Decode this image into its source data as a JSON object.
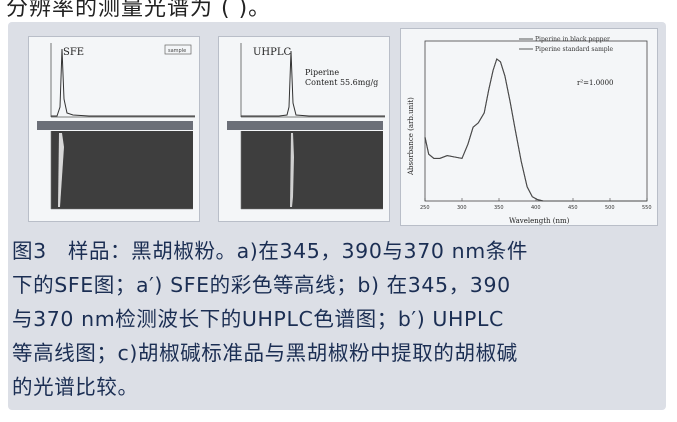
{
  "top_text": "分辨率的测量光谱为          (  )。",
  "figure": {
    "sfe": {
      "label": "SFE",
      "inset_label": "sample",
      "colors": {
        "plot_bg": "#f4f6f8",
        "contour_bg": "#3e3e3e",
        "trace": "#333"
      }
    },
    "uhplc": {
      "label": "UHPLC",
      "annotation_line1": "Piperine",
      "annotation_line2": "Content 55.6mg/g"
    },
    "spectrum": {
      "legend": [
        "Piperine in black pepper",
        "Piperine standard sample"
      ],
      "r2_label": "r²=1.0000",
      "ylabel": "Absorbance (arb.unit)",
      "xlabel": "Wavelength (nm)",
      "xticks": [
        "250",
        "300",
        "350",
        "400",
        "450",
        "500",
        "550"
      ]
    }
  },
  "chart_data": {
    "type": "line",
    "xlabel": "Wavelength (nm)",
    "ylabel": "Absorbance (arb.unit)",
    "xlim": [
      250,
      550
    ],
    "annotation": "r²=1.0000",
    "series": [
      {
        "name": "Piperine in black pepper",
        "x": [
          250,
          255,
          262,
          270,
          280,
          290,
          300,
          308,
          315,
          322,
          330,
          336,
          342,
          347,
          352,
          358,
          365,
          372,
          380,
          388,
          395,
          402,
          410,
          420,
          450,
          500,
          550
        ],
        "y": [
          0.45,
          0.33,
          0.3,
          0.3,
          0.32,
          0.31,
          0.3,
          0.4,
          0.52,
          0.55,
          0.62,
          0.78,
          0.92,
          1.0,
          0.98,
          0.88,
          0.7,
          0.5,
          0.28,
          0.1,
          0.03,
          0.01,
          0.0,
          0.0,
          0.0,
          0.0,
          0.0
        ]
      },
      {
        "name": "Piperine standard sample",
        "x": [
          250,
          255,
          262,
          270,
          280,
          290,
          300,
          308,
          315,
          322,
          330,
          336,
          342,
          347,
          352,
          358,
          365,
          372,
          380,
          388,
          395,
          402,
          410,
          420,
          450,
          500,
          550
        ],
        "y": [
          0.45,
          0.33,
          0.3,
          0.3,
          0.32,
          0.31,
          0.3,
          0.4,
          0.52,
          0.55,
          0.62,
          0.78,
          0.92,
          1.0,
          0.98,
          0.88,
          0.7,
          0.5,
          0.28,
          0.1,
          0.03,
          0.01,
          0.0,
          0.0,
          0.0,
          0.0,
          0.0
        ]
      }
    ]
  },
  "caption": {
    "line1": "图3　样品：黑胡椒粉。a)在345，390与370 nm条件",
    "line2": "下的SFE图；a′) SFE的彩色等高线；b) 在345，390",
    "line3": "与370 nm检测波长下的UHPLC色谱图；b′) UHPLC",
    "line4": "等高线图；c)胡椒碱标准品与黑胡椒粉中提取的胡椒碱",
    "line5": "的光谱比较。"
  }
}
